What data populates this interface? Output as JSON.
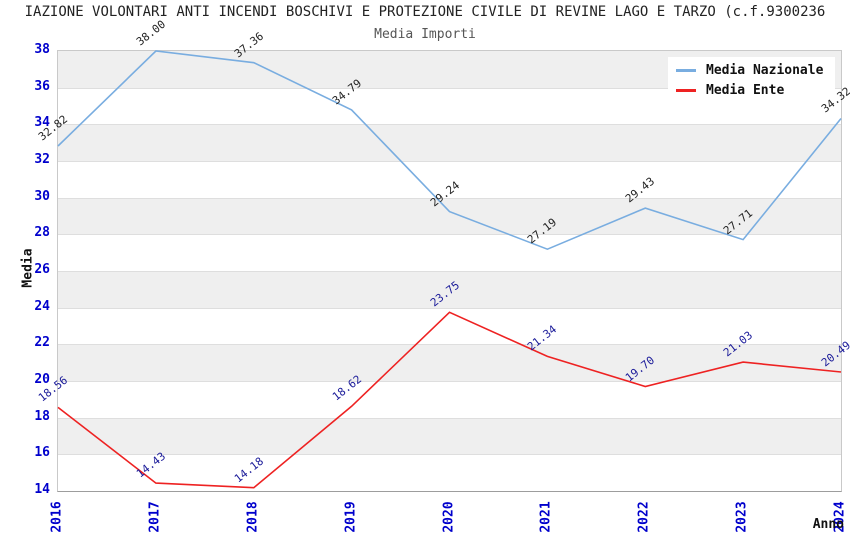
{
  "header": {
    "title": "IAZIONE VOLONTARI ANTI INCENDI BOSCHIVI E PROTEZIONE CIVILE DI REVINE LAGO E TARZO (c.f.9300236",
    "subtitle": "Media Importi"
  },
  "legend": {
    "items": [
      {
        "label": "Media Nazionale",
        "color": "#79ade0"
      },
      {
        "label": "Media Ente",
        "color": "#ee2222"
      }
    ]
  },
  "chart_data": {
    "type": "line",
    "title": "Media Importi",
    "xlabel": "Anno",
    "ylabel": "Media",
    "x": [
      2016,
      2017,
      2018,
      2019,
      2020,
      2021,
      2022,
      2023,
      2024
    ],
    "x_ticks": [
      "2016",
      "2017",
      "2018",
      "2019",
      "2020",
      "2021",
      "2022",
      "2023",
      "2024"
    ],
    "y_ticks": [
      38,
      36,
      34,
      32,
      30,
      28,
      26,
      24,
      22,
      20,
      18,
      16,
      14
    ],
    "ylim": [
      14,
      38
    ],
    "ytick_step": 2,
    "grid": "horizontal-bands",
    "band_colors": [
      "#efefef",
      "#ffffff"
    ],
    "tick_label_color": "#0000cc",
    "legend_position": "top-right",
    "series": [
      {
        "name": "Media Nazionale",
        "color": "#79ade0",
        "label_color": "#222222",
        "values": [
          32.82,
          38.0,
          37.36,
          34.79,
          29.24,
          27.19,
          29.43,
          27.71,
          34.32
        ],
        "labels": [
          "32.82",
          "38.00",
          "37.36",
          "34.79",
          "29.24",
          "27.19",
          "29.43",
          "27.71",
          "34.32"
        ]
      },
      {
        "name": "Media Ente",
        "color": "#ee2222",
        "label_color": "#1a1a99",
        "values": [
          18.56,
          14.43,
          14.18,
          18.62,
          23.75,
          21.34,
          19.7,
          21.03,
          20.49
        ],
        "labels": [
          "18.56",
          "14.43",
          "14.18",
          "18.62",
          "23.75",
          "21.34",
          "19.70",
          "21.03",
          "20.49"
        ]
      }
    ]
  }
}
